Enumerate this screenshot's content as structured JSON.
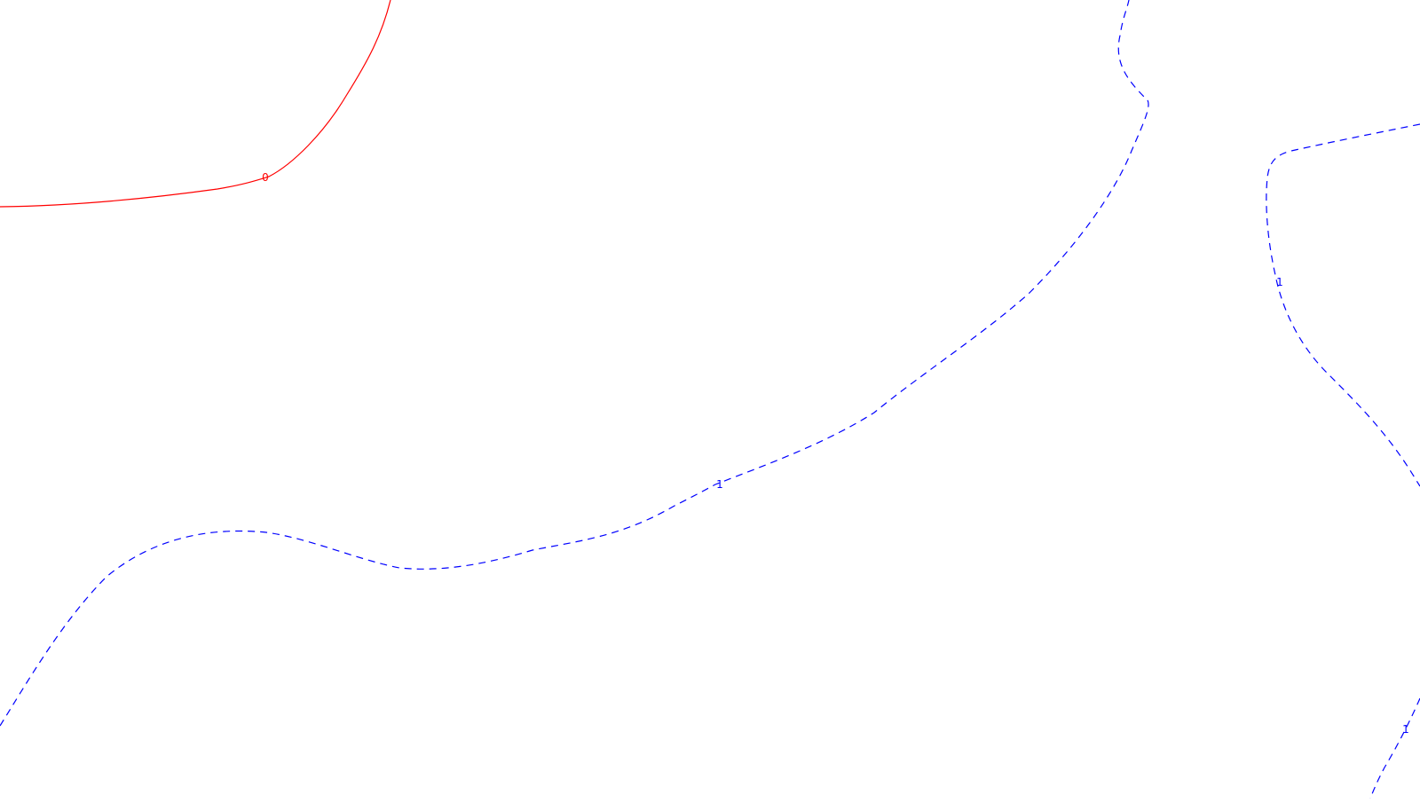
{
  "contours": [
    {
      "level": "0",
      "color": "#ff0000",
      "line_style": "solid"
    },
    {
      "level": "1",
      "color": "#0000ff",
      "line_style": "dashed"
    }
  ]
}
